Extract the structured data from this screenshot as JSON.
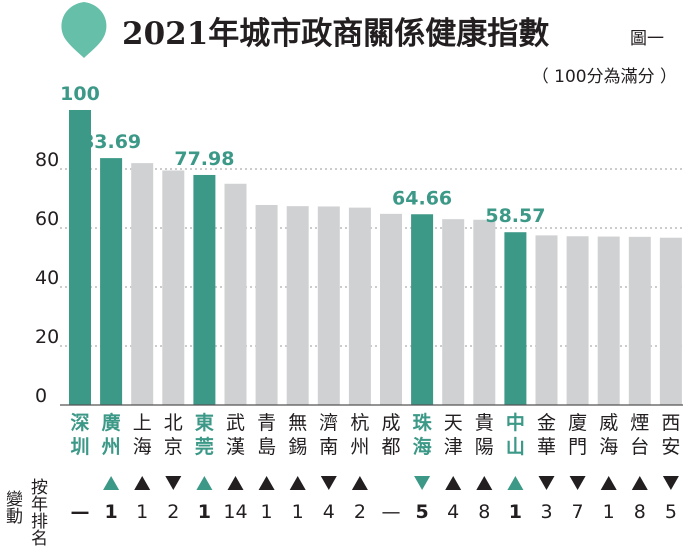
{
  "header": {
    "title": "2021年城市政商關係健康指數",
    "figure_label": "圖一",
    "subtitle": "（ 100分為滿分 ）"
  },
  "side_labels": {
    "change": "變動",
    "rank_by_year": "按年排名"
  },
  "colors": {
    "highlight": "#3c9887",
    "gray_bar": "#d0d1d3",
    "text": "#231f20",
    "drop_icon": "#66bfa9"
  },
  "chart_data": {
    "type": "bar",
    "title": "2021年城市政商關係健康指數",
    "subtitle": "（ 100分為滿分 ）",
    "categories": [
      "深圳",
      "廣州",
      "上海",
      "北京",
      "東莞",
      "武漢",
      "青島",
      "無錫",
      "濟南",
      "杭州",
      "成都",
      "珠海",
      "天津",
      "貴陽",
      "中山",
      "金華",
      "廈門",
      "威海",
      "煙台",
      "西安"
    ],
    "values": [
      100,
      83.69,
      82.0,
      79.5,
      77.98,
      75.0,
      67.8,
      67.4,
      67.3,
      66.9,
      64.8,
      64.66,
      63.0,
      62.8,
      58.57,
      57.5,
      57.2,
      57.1,
      57.0,
      56.7
    ],
    "highlighted": [
      true,
      true,
      false,
      false,
      true,
      false,
      false,
      false,
      false,
      false,
      false,
      true,
      false,
      false,
      true,
      false,
      false,
      false,
      false,
      false
    ],
    "value_labels": [
      "100",
      "83.69",
      "",
      "",
      "77.98",
      "",
      "",
      "",
      "",
      "",
      "",
      "64.66",
      "",
      "",
      "58.57",
      "",
      "",
      "",
      "",
      ""
    ],
    "rank_change": [
      {
        "dir": "none",
        "value": "—"
      },
      {
        "dir": "up",
        "value": "1"
      },
      {
        "dir": "up",
        "value": "1"
      },
      {
        "dir": "down",
        "value": "2"
      },
      {
        "dir": "up",
        "value": "1"
      },
      {
        "dir": "up",
        "value": "14"
      },
      {
        "dir": "up",
        "value": "1"
      },
      {
        "dir": "up",
        "value": "1"
      },
      {
        "dir": "down",
        "value": "4"
      },
      {
        "dir": "up",
        "value": "2"
      },
      {
        "dir": "none",
        "value": "—"
      },
      {
        "dir": "down",
        "value": "5"
      },
      {
        "dir": "up",
        "value": "4"
      },
      {
        "dir": "up",
        "value": "8"
      },
      {
        "dir": "up",
        "value": "1"
      },
      {
        "dir": "down",
        "value": "3"
      },
      {
        "dir": "down",
        "value": "7"
      },
      {
        "dir": "up",
        "value": "1"
      },
      {
        "dir": "up",
        "value": "8"
      },
      {
        "dir": "down",
        "value": "5"
      }
    ],
    "yticks": [
      "0",
      "20",
      "40",
      "60",
      "80"
    ],
    "ylim": [
      0,
      100
    ],
    "grid": true
  }
}
